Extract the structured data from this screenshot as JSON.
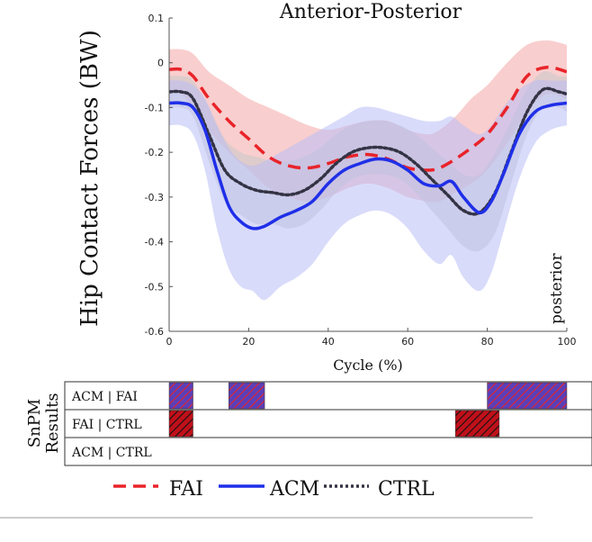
{
  "chart_data": {
    "type": "line",
    "title": "Anterior-Posterior",
    "xlabel": "Cycle (%)",
    "ylabel": "Hip Contact Forces (BW)",
    "xlim": [
      0,
      100
    ],
    "ylim": [
      -0.6,
      0.1
    ],
    "xticks": [
      "0",
      "20",
      "40",
      "60",
      "80",
      "100"
    ],
    "yticks": [
      "0.1",
      "0",
      "-0.1",
      "-0.2",
      "-0.3",
      "-0.4",
      "-0.5",
      "-0.6"
    ],
    "annotation": "posterior",
    "series": [
      {
        "name": "FAI",
        "color": "#e8242a",
        "band_color": "#f4a6a6",
        "style": "dashed",
        "x": [
          0,
          3,
          6,
          10,
          15,
          20,
          25,
          30,
          35,
          40,
          45,
          50,
          55,
          60,
          65,
          68,
          72,
          76,
          80,
          85,
          90,
          95,
          100
        ],
        "mean": [
          -0.015,
          -0.015,
          -0.03,
          -0.08,
          -0.13,
          -0.17,
          -0.21,
          -0.23,
          -0.235,
          -0.225,
          -0.21,
          -0.205,
          -0.215,
          -0.235,
          -0.24,
          -0.235,
          -0.215,
          -0.19,
          -0.16,
          -0.1,
          -0.03,
          -0.01,
          -0.02
        ],
        "upper": [
          0.03,
          0.03,
          0.02,
          -0.02,
          -0.05,
          -0.08,
          -0.1,
          -0.12,
          -0.14,
          -0.15,
          -0.14,
          -0.13,
          -0.13,
          -0.15,
          -0.16,
          -0.15,
          -0.12,
          -0.08,
          -0.05,
          0.0,
          0.04,
          0.05,
          0.04
        ],
        "lower": [
          -0.07,
          -0.07,
          -0.1,
          -0.15,
          -0.2,
          -0.24,
          -0.28,
          -0.3,
          -0.31,
          -0.3,
          -0.28,
          -0.27,
          -0.28,
          -0.3,
          -0.31,
          -0.31,
          -0.29,
          -0.27,
          -0.24,
          -0.18,
          -0.11,
          -0.07,
          -0.08
        ]
      },
      {
        "name": "ACM",
        "color": "#1f2fe8",
        "band_color": "#b9bdf6",
        "style": "solid",
        "x": [
          0,
          3,
          6,
          9,
          12,
          15,
          18,
          21,
          24,
          28,
          32,
          36,
          40,
          44,
          48,
          52,
          56,
          60,
          64,
          68,
          71,
          74,
          78,
          81,
          84,
          88,
          92,
          96,
          100
        ],
        "mean": [
          -0.09,
          -0.09,
          -0.1,
          -0.15,
          -0.24,
          -0.32,
          -0.355,
          -0.37,
          -0.365,
          -0.345,
          -0.33,
          -0.31,
          -0.27,
          -0.24,
          -0.225,
          -0.215,
          -0.22,
          -0.24,
          -0.27,
          -0.275,
          -0.265,
          -0.3,
          -0.335,
          -0.31,
          -0.25,
          -0.16,
          -0.11,
          -0.095,
          -0.09
        ],
        "upper": [
          -0.04,
          -0.04,
          -0.05,
          -0.08,
          -0.14,
          -0.19,
          -0.22,
          -0.23,
          -0.22,
          -0.2,
          -0.18,
          -0.16,
          -0.14,
          -0.12,
          -0.1,
          -0.1,
          -0.11,
          -0.12,
          -0.13,
          -0.13,
          -0.12,
          -0.14,
          -0.16,
          -0.14,
          -0.1,
          -0.06,
          -0.04,
          -0.04,
          -0.04
        ],
        "lower": [
          -0.14,
          -0.14,
          -0.16,
          -0.24,
          -0.37,
          -0.46,
          -0.5,
          -0.51,
          -0.53,
          -0.5,
          -0.48,
          -0.45,
          -0.4,
          -0.36,
          -0.34,
          -0.33,
          -0.34,
          -0.37,
          -0.42,
          -0.45,
          -0.43,
          -0.48,
          -0.51,
          -0.47,
          -0.38,
          -0.26,
          -0.18,
          -0.15,
          -0.14
        ]
      },
      {
        "name": "CTRL",
        "color": "#333344",
        "band_color": "#c8c8c8",
        "style": "dotted",
        "x": [
          0,
          3,
          6,
          10,
          14,
          18,
          22,
          26,
          30,
          34,
          38,
          42,
          46,
          50,
          54,
          58,
          62,
          66,
          70,
          74,
          78,
          82,
          86,
          90,
          94,
          98,
          100
        ],
        "mean": [
          -0.065,
          -0.065,
          -0.08,
          -0.16,
          -0.24,
          -0.27,
          -0.285,
          -0.29,
          -0.295,
          -0.285,
          -0.26,
          -0.225,
          -0.2,
          -0.19,
          -0.19,
          -0.2,
          -0.225,
          -0.26,
          -0.295,
          -0.33,
          -0.335,
          -0.29,
          -0.2,
          -0.11,
          -0.06,
          -0.065,
          -0.07
        ],
        "upper": [
          -0.03,
          -0.03,
          -0.04,
          -0.1,
          -0.17,
          -0.2,
          -0.21,
          -0.22,
          -0.22,
          -0.21,
          -0.19,
          -0.16,
          -0.14,
          -0.13,
          -0.13,
          -0.14,
          -0.16,
          -0.19,
          -0.22,
          -0.25,
          -0.25,
          -0.2,
          -0.13,
          -0.06,
          -0.02,
          -0.03,
          -0.03
        ],
        "lower": [
          -0.1,
          -0.1,
          -0.12,
          -0.22,
          -0.31,
          -0.34,
          -0.36,
          -0.36,
          -0.37,
          -0.36,
          -0.33,
          -0.29,
          -0.26,
          -0.25,
          -0.25,
          -0.26,
          -0.29,
          -0.33,
          -0.37,
          -0.41,
          -0.42,
          -0.38,
          -0.27,
          -0.16,
          -0.1,
          -0.1,
          -0.11
        ]
      }
    ],
    "snpm": {
      "label": "SnPM Results",
      "rows": [
        {
          "label": "ACM | FAI",
          "fill": "#5b3fb8",
          "stripe": "#e8242a",
          "intervals": [
            [
              0,
              6
            ],
            [
              15,
              24
            ],
            [
              80,
              100
            ]
          ]
        },
        {
          "label": "FAI | CTRL",
          "fill": "#c0101a",
          "stripe": "#111111",
          "intervals": [
            [
              0,
              6
            ],
            [
              72,
              83
            ]
          ]
        },
        {
          "label": "ACM | CTRL",
          "fill": "#888888",
          "stripe": "#111111",
          "intervals": []
        }
      ]
    },
    "legend": {
      "position": "bottom",
      "entries": [
        "FAI",
        "ACM",
        "CTRL"
      ]
    }
  }
}
